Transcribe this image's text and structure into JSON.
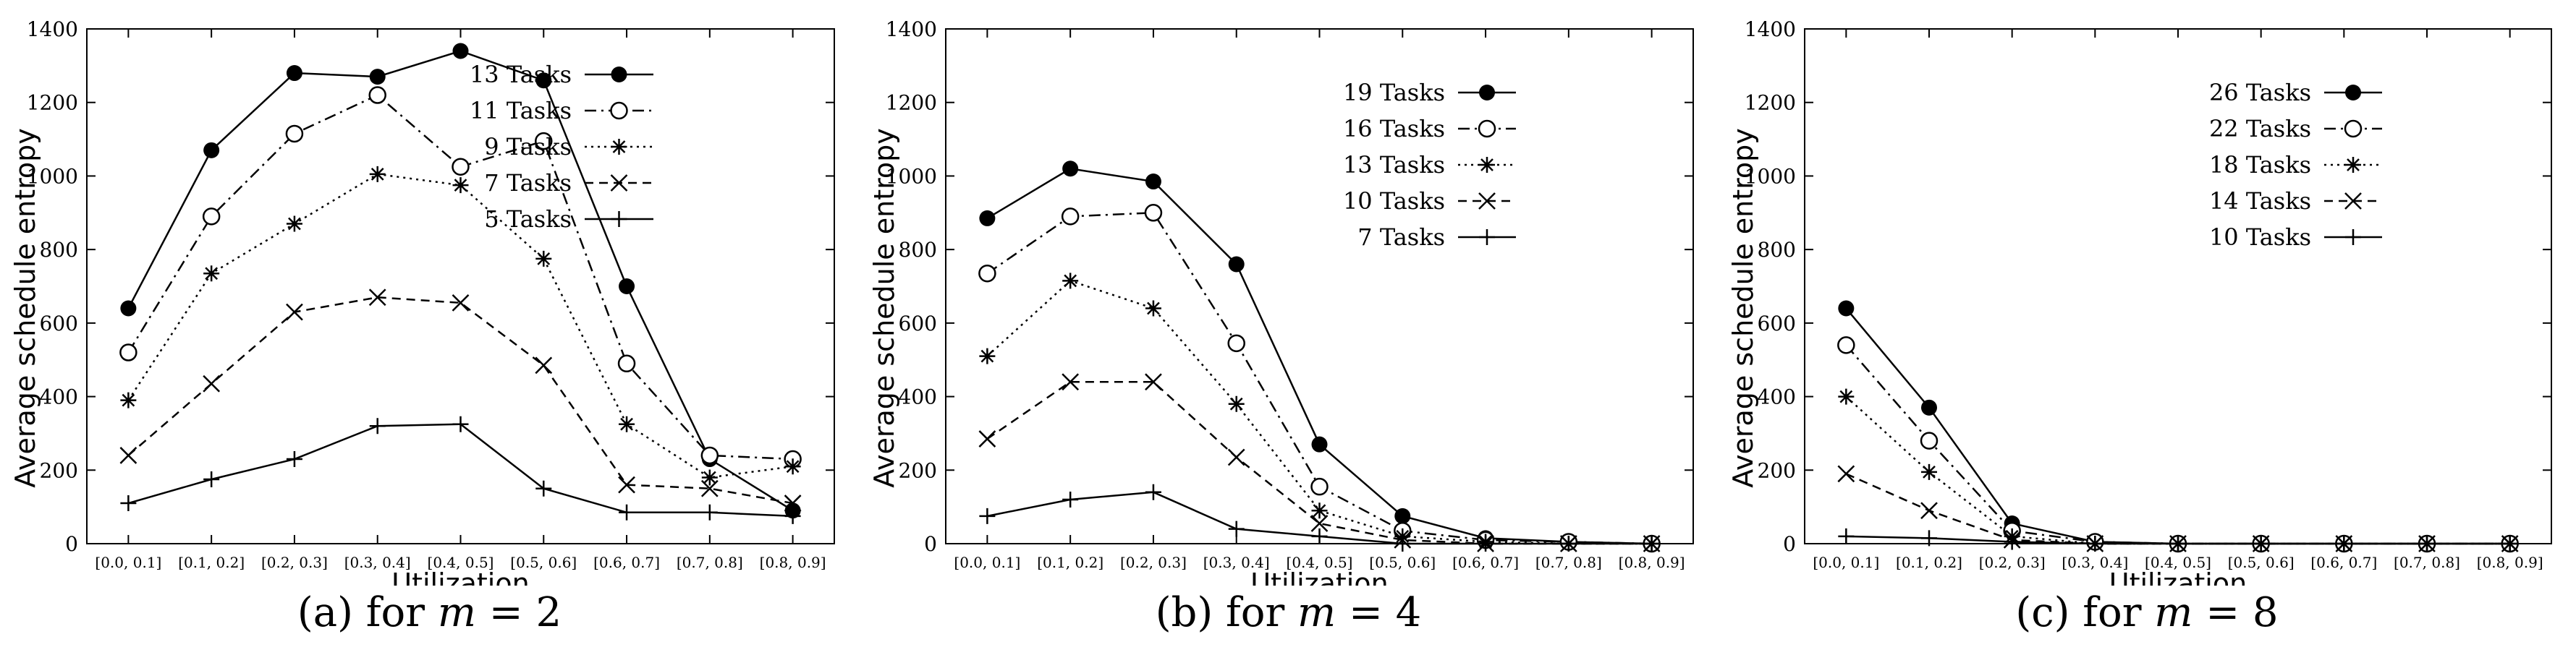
{
  "chart_data": [
    {
      "type": "line",
      "caption": {
        "prefix": "(a)  for ",
        "var": "m",
        "suffix": " = 2"
      },
      "xlabel": "Utilization",
      "ylabel": "Average schedule entropy",
      "ylim": [
        0,
        1400
      ],
      "yticks": [
        "0",
        "200",
        "400",
        "600",
        "800",
        "1000",
        "1200",
        "1400"
      ],
      "categories": [
        "[0.0, 0.1]",
        "[0.1, 0.2]",
        "[0.2, 0.3]",
        "[0.3, 0.4]",
        "[0.4, 0.5]",
        "[0.5, 0.6]",
        "[0.6, 0.7]",
        "[0.7, 0.8]",
        "[0.8, 0.9]"
      ],
      "legend_position": "top-right",
      "series": [
        {
          "name": "13 Tasks",
          "marker": "filled-circle",
          "dash": "solid",
          "values": [
            640,
            1070,
            1280,
            1270,
            1340,
            1260,
            700,
            230,
            90
          ]
        },
        {
          "name": "11 Tasks",
          "marker": "open-circle",
          "dash": "dash-dot",
          "values": [
            520,
            890,
            1115,
            1220,
            1025,
            1095,
            490,
            240,
            230
          ]
        },
        {
          "name": "9 Tasks",
          "marker": "star",
          "dash": "dotted",
          "values": [
            390,
            735,
            870,
            1005,
            975,
            775,
            325,
            180,
            210
          ]
        },
        {
          "name": "7 Tasks",
          "marker": "x",
          "dash": "dashed",
          "values": [
            240,
            435,
            630,
            670,
            655,
            485,
            160,
            150,
            110
          ]
        },
        {
          "name": "5 Tasks",
          "marker": "plus",
          "dash": "solid",
          "values": [
            110,
            175,
            230,
            320,
            325,
            150,
            85,
            85,
            75
          ]
        }
      ]
    },
    {
      "type": "line",
      "caption": {
        "prefix": "(b)  for ",
        "var": "m",
        "suffix": " = 4"
      },
      "xlabel": "Utilization",
      "ylabel": "Average schedule entropy",
      "ylim": [
        0,
        1400
      ],
      "yticks": [
        "0",
        "200",
        "400",
        "600",
        "800",
        "1000",
        "1200",
        "1400"
      ],
      "categories": [
        "[0.0, 0.1]",
        "[0.1, 0.2]",
        "[0.2, 0.3]",
        "[0.3, 0.4]",
        "[0.4, 0.5]",
        "[0.5, 0.6]",
        "[0.6, 0.7]",
        "[0.7, 0.8]",
        "[0.8, 0.9]"
      ],
      "legend_position": "top-right",
      "series": [
        {
          "name": "19 Tasks",
          "marker": "filled-circle",
          "dash": "solid",
          "values": [
            885,
            1020,
            985,
            760,
            270,
            75,
            15,
            5,
            0
          ]
        },
        {
          "name": "16 Tasks",
          "marker": "open-circle",
          "dash": "dash-dot",
          "values": [
            735,
            890,
            900,
            545,
            155,
            35,
            10,
            5,
            0
          ]
        },
        {
          "name": "13 Tasks",
          "marker": "star",
          "dash": "dotted",
          "values": [
            510,
            715,
            640,
            380,
            90,
            20,
            5,
            0,
            0
          ]
        },
        {
          "name": "10 Tasks",
          "marker": "x",
          "dash": "dashed",
          "values": [
            285,
            440,
            440,
            235,
            55,
            10,
            0,
            0,
            0
          ]
        },
        {
          "name": "7 Tasks",
          "marker": "plus",
          "dash": "solid",
          "values": [
            75,
            120,
            140,
            40,
            20,
            0,
            0,
            0,
            0
          ]
        }
      ]
    },
    {
      "type": "line",
      "caption": {
        "prefix": "(c)  for ",
        "var": "m",
        "suffix": " = 8"
      },
      "xlabel": "Utilization",
      "ylabel": "Average schedule entropy",
      "ylim": [
        0,
        1400
      ],
      "yticks": [
        "0",
        "200",
        "400",
        "600",
        "800",
        "1000",
        "1200",
        "1400"
      ],
      "categories": [
        "[0.0, 0.1]",
        "[0.1, 0.2]",
        "[0.2, 0.3]",
        "[0.3, 0.4]",
        "[0.4, 0.5]",
        "[0.5, 0.6]",
        "[0.6, 0.7]",
        "[0.7, 0.8]",
        "[0.8, 0.9]"
      ],
      "legend_position": "top-right",
      "series": [
        {
          "name": "26 Tasks",
          "marker": "filled-circle",
          "dash": "solid",
          "values": [
            640,
            370,
            55,
            5,
            0,
            0,
            0,
            0,
            0
          ]
        },
        {
          "name": "22 Tasks",
          "marker": "open-circle",
          "dash": "dash-dot",
          "values": [
            540,
            280,
            35,
            5,
            0,
            0,
            0,
            0,
            0
          ]
        },
        {
          "name": "18 Tasks",
          "marker": "star",
          "dash": "dotted",
          "values": [
            400,
            195,
            20,
            0,
            0,
            0,
            0,
            0,
            0
          ]
        },
        {
          "name": "14 Tasks",
          "marker": "x",
          "dash": "dashed",
          "values": [
            190,
            90,
            10,
            0,
            0,
            0,
            0,
            0,
            0
          ]
        },
        {
          "name": "10 Tasks",
          "marker": "plus",
          "dash": "solid",
          "values": [
            20,
            15,
            5,
            0,
            0,
            0,
            0,
            0,
            0
          ]
        }
      ]
    }
  ]
}
